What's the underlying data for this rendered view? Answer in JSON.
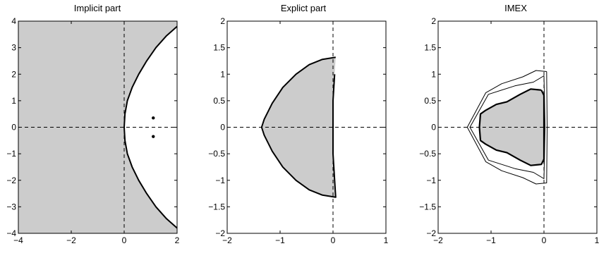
{
  "chart_data": [
    {
      "type": "area",
      "title": "Implicit part",
      "xlim": [
        -4,
        2
      ],
      "ylim": [
        -4,
        4
      ],
      "xticks": [
        -4,
        -2,
        0,
        2
      ],
      "yticks": [
        -4,
        -3,
        -2,
        -1,
        0,
        1,
        2,
        3,
        4
      ],
      "xtick_labels": [
        "−4",
        "−2",
        "0",
        "2"
      ],
      "ytick_labels": [
        "−4",
        "−3",
        "−2",
        "−1",
        "0",
        "1",
        "2",
        "3",
        "4"
      ],
      "stability_region_shaded": true,
      "boundary": [
        [
          2,
          3.8
        ],
        [
          1.6,
          3.45
        ],
        [
          1.2,
          3.0
        ],
        [
          0.85,
          2.5
        ],
        [
          0.55,
          2.0
        ],
        [
          0.3,
          1.5
        ],
        [
          0.12,
          1.0
        ],
        [
          0.03,
          0.5
        ],
        [
          0,
          0
        ],
        [
          0.03,
          -0.5
        ],
        [
          0.12,
          -1.0
        ],
        [
          0.3,
          -1.5
        ],
        [
          0.55,
          -2.0
        ],
        [
          0.85,
          -2.5
        ],
        [
          1.2,
          -3.0
        ],
        [
          1.6,
          -3.45
        ],
        [
          2,
          -3.8
        ]
      ],
      "points": [
        [
          1.1,
          0.35
        ],
        [
          1.1,
          -0.35
        ]
      ],
      "grid": false
    },
    {
      "type": "area",
      "title": "Explict part",
      "xlim": [
        -2,
        1
      ],
      "ylim": [
        -2,
        2
      ],
      "xticks": [
        -2,
        -1,
        0,
        1
      ],
      "yticks": [
        -2,
        -1.5,
        -1,
        -0.5,
        0,
        0.5,
        1,
        1.5,
        2
      ],
      "xtick_labels": [
        "−2",
        "−1",
        "0",
        "1"
      ],
      "ytick_labels": [
        "−2",
        "−1.5",
        "−1",
        "−0.5",
        "0",
        "0.5",
        "1",
        "1.5",
        "2"
      ],
      "stability_region_shaded": true,
      "boundary": [
        [
          0.05,
          1.32
        ],
        [
          -0.2,
          1.28
        ],
        [
          -0.45,
          1.18
        ],
        [
          -0.7,
          1.0
        ],
        [
          -0.95,
          0.75
        ],
        [
          -1.15,
          0.45
        ],
        [
          -1.3,
          0.15
        ],
        [
          -1.35,
          0
        ],
        [
          -1.3,
          -0.15
        ],
        [
          -1.15,
          -0.45
        ],
        [
          -0.95,
          -0.75
        ],
        [
          -0.7,
          -1.0
        ],
        [
          -0.45,
          -1.18
        ],
        [
          -0.2,
          -1.28
        ],
        [
          0.05,
          -1.32
        ],
        [
          0.03,
          -1.0
        ],
        [
          0.0,
          -0.5
        ],
        [
          0.0,
          0
        ],
        [
          0.0,
          0.5
        ],
        [
          0.03,
          1.0
        ]
      ],
      "grid": false
    },
    {
      "type": "area",
      "title": "IMEX",
      "xlim": [
        -2,
        1
      ],
      "ylim": [
        -2,
        2
      ],
      "xticks": [
        -2,
        -1,
        0,
        1
      ],
      "yticks": [
        -2,
        -1.5,
        -1,
        -0.5,
        0,
        0.5,
        1,
        1.5,
        2
      ],
      "xtick_labels": [
        "−2",
        "−1",
        "0",
        "1"
      ],
      "ytick_labels": [
        "−2",
        "−1.5",
        "−1",
        "−0.5",
        "0",
        "0.5",
        "1",
        "1.5",
        "2"
      ],
      "stability_region_shaded": true,
      "series": [
        {
          "role": "inner-shaded",
          "points": [
            [
              -0.05,
              0.7
            ],
            [
              -0.25,
              0.72
            ],
            [
              -0.45,
              0.62
            ],
            [
              -0.7,
              0.48
            ],
            [
              -0.9,
              0.43
            ],
            [
              -1.1,
              0.32
            ],
            [
              -1.2,
              0.25
            ],
            [
              -1.22,
              0
            ],
            [
              -1.2,
              -0.25
            ],
            [
              -1.1,
              -0.32
            ],
            [
              -0.9,
              -0.43
            ],
            [
              -0.7,
              -0.48
            ],
            [
              -0.45,
              -0.62
            ],
            [
              -0.25,
              -0.72
            ],
            [
              -0.05,
              -0.7
            ],
            [
              0.0,
              -0.6
            ],
            [
              0.0,
              0
            ],
            [
              0.0,
              0.6
            ]
          ]
        },
        {
          "role": "middle",
          "points": [
            [
              0.0,
              0.97
            ],
            [
              -0.2,
              0.85
            ],
            [
              -0.55,
              0.78
            ],
            [
              -1.05,
              0.62
            ],
            [
              -1.4,
              0
            ],
            [
              -1.05,
              -0.62
            ],
            [
              -0.55,
              -0.78
            ],
            [
              -0.2,
              -0.85
            ],
            [
              0.0,
              -0.97
            ],
            [
              0.02,
              0
            ],
            [
              0.0,
              0.97
            ]
          ]
        },
        {
          "role": "outer",
          "points": [
            [
              0.05,
              1.05
            ],
            [
              -0.15,
              1.07
            ],
            [
              -0.4,
              0.95
            ],
            [
              -0.8,
              0.82
            ],
            [
              -1.1,
              0.65
            ],
            [
              -1.45,
              0
            ],
            [
              -1.1,
              -0.65
            ],
            [
              -0.8,
              -0.82
            ],
            [
              -0.4,
              -0.95
            ],
            [
              -0.15,
              -1.07
            ],
            [
              0.05,
              -1.05
            ],
            [
              0.06,
              0
            ],
            [
              0.05,
              1.05
            ]
          ]
        }
      ],
      "grid": false
    }
  ],
  "colors": {
    "shade": "#cccccc",
    "line": "#000000",
    "background": "#ffffff"
  }
}
